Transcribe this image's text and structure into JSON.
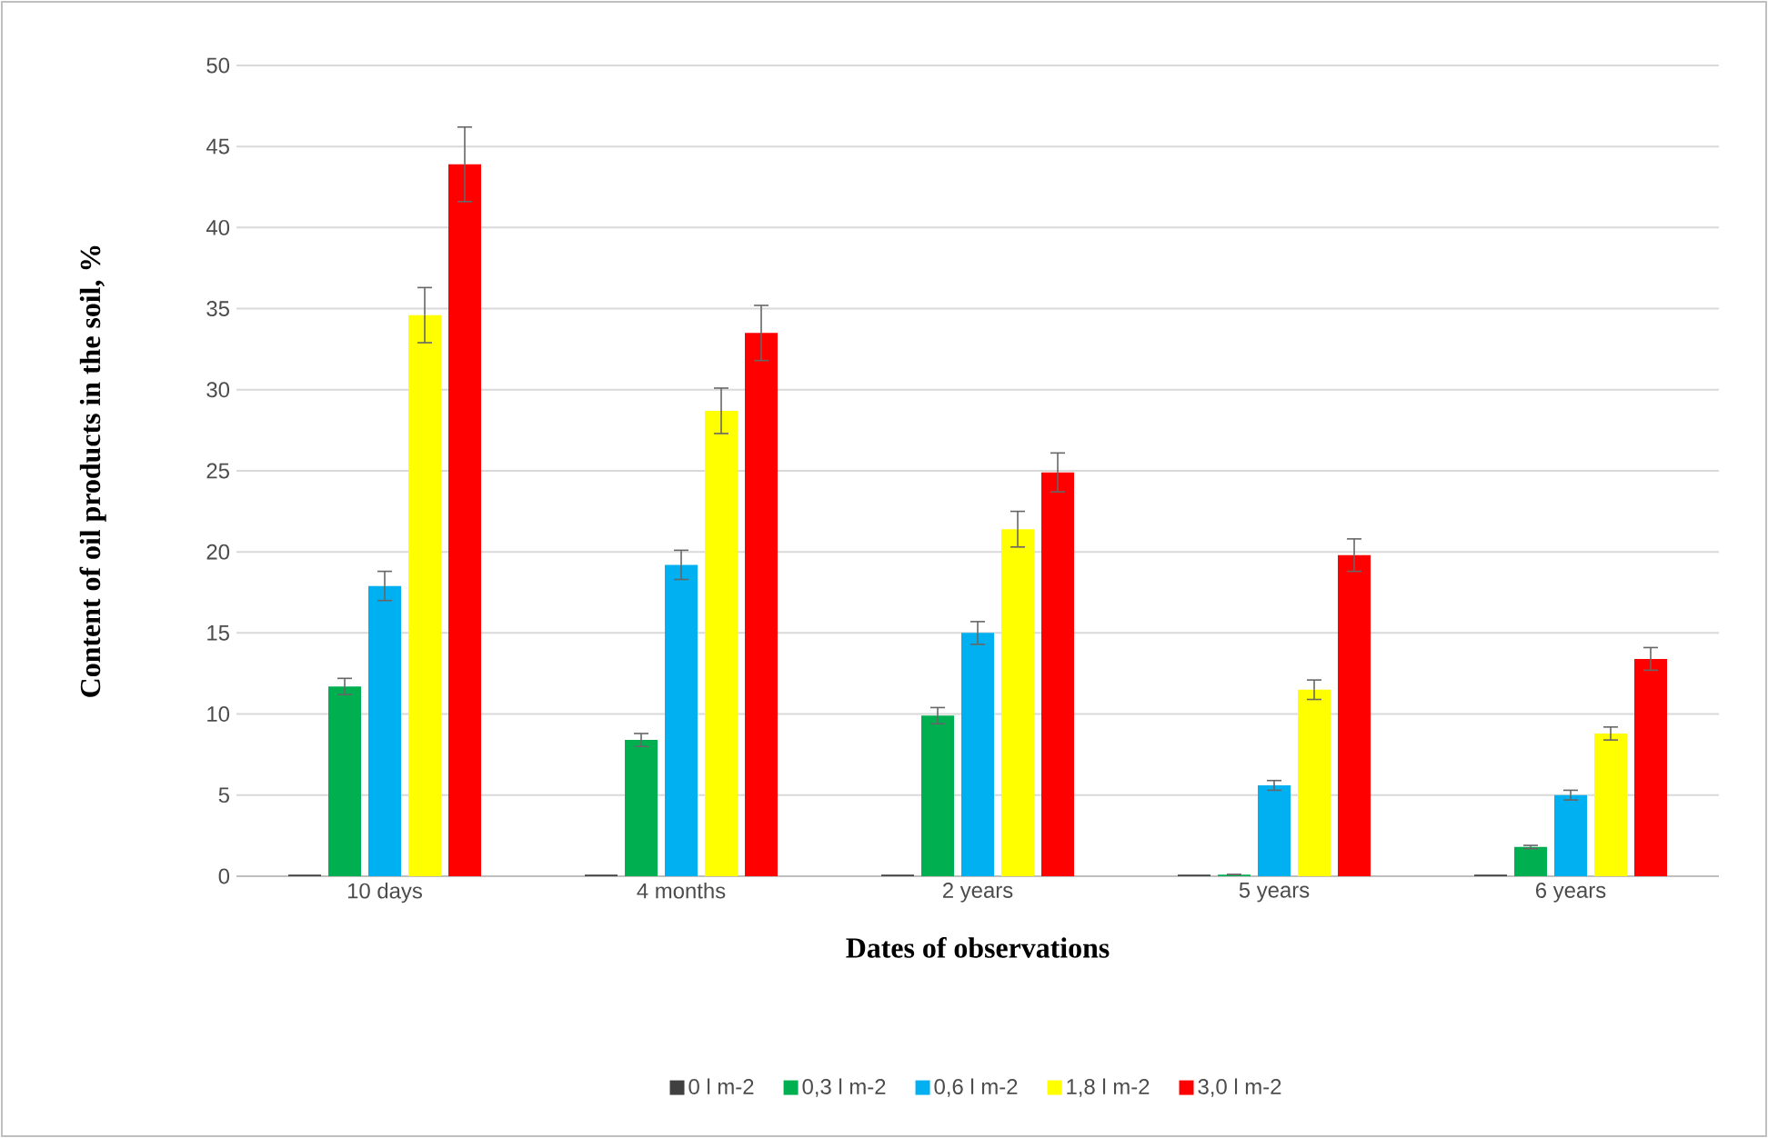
{
  "chart_data": {
    "type": "bar",
    "xlabel": "Dates of observations",
    "ylabel": "Content of oil products in the soil, %",
    "categories": [
      "10 days",
      "4 months",
      "2 years",
      "5 years",
      "6 years"
    ],
    "series": [
      {
        "name": "0 l m-2",
        "color": "#404040",
        "values": [
          0.1,
          0.1,
          0.1,
          0.1,
          0.1
        ]
      },
      {
        "name": "0,3 l m-2",
        "color": "#00b050",
        "values": [
          11.7,
          8.4,
          9.9,
          0.1,
          1.8
        ],
        "errors": [
          0.5,
          0.4,
          0.5,
          null,
          0.1
        ]
      },
      {
        "name": "0,6 l m-2",
        "color": "#00b0f0",
        "values": [
          17.9,
          19.2,
          15.0,
          5.6,
          5.0
        ],
        "errors": [
          0.9,
          0.9,
          0.7,
          0.3,
          0.3
        ]
      },
      {
        "name": "1,8 l m-2",
        "color": "#ffff00",
        "values": [
          34.6,
          28.7,
          21.4,
          11.5,
          8.8
        ],
        "errors": [
          1.7,
          1.4,
          1.1,
          0.6,
          0.4
        ]
      },
      {
        "name": "3,0 l m-2",
        "color": "#ff0000",
        "values": [
          43.9,
          33.5,
          24.9,
          19.8,
          13.4
        ],
        "errors": [
          2.3,
          1.7,
          1.2,
          1.0,
          0.7
        ]
      }
    ],
    "ylim": [
      0,
      50
    ],
    "yticks": [
      0,
      5,
      10,
      15,
      20,
      25,
      30,
      35,
      40,
      45,
      50
    ],
    "grid": "y",
    "legend": "bottom"
  }
}
